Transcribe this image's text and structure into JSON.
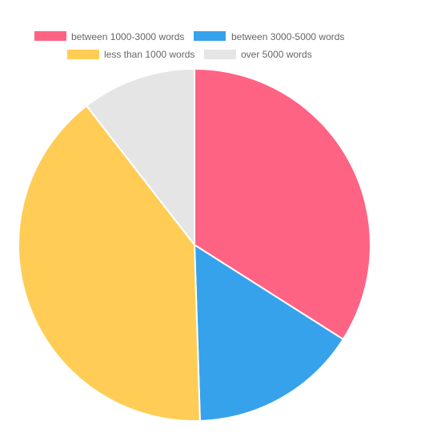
{
  "chart_data": {
    "type": "pie",
    "labels": [
      "between 1000-3000 words",
      "between 3000-5000 words",
      "less than 1000 words",
      "over 5000 words"
    ],
    "values": [
      34,
      15.5,
      40,
      10.5
    ],
    "colors": [
      "#ff6384",
      "#36a2eb",
      "#ffcd56",
      "#e5e5e5"
    ],
    "legend": "top",
    "start_angle": "top, clockwise"
  }
}
